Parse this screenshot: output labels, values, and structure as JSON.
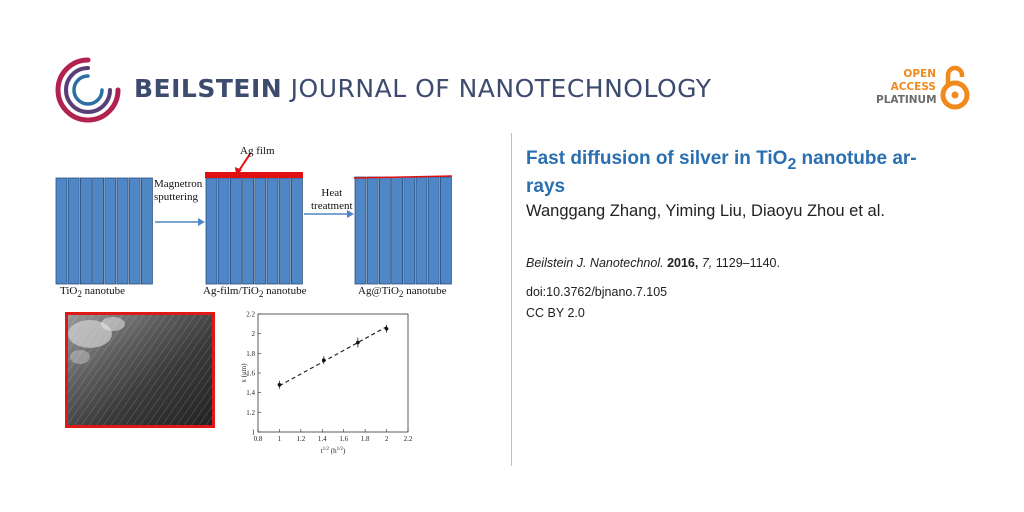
{
  "header": {
    "journal_bold": "BEILSTEIN",
    "journal_rest": " JOURNAL OF NANOTECHNOLOGY",
    "oa_line1": "OPEN",
    "oa_line2": "ACCESS",
    "oa_line3": "PLATINUM"
  },
  "figure": {
    "ag_film": "Ag film",
    "step1_line1": "Magnetron",
    "step1_line2": "sputtering",
    "step2_line1": "Heat",
    "step2_line2": "treatment",
    "cap1_a": "TiO",
    "cap1_sub": "2",
    "cap1_b": " nanotube",
    "cap2_a": "Ag-film/TiO",
    "cap2_sub": "2",
    "cap2_b": " nanotube",
    "cap3_a": "Ag@TiO",
    "cap3_sub": "2",
    "cap3_b": " nanotube"
  },
  "article": {
    "title_a": "Fast diffusion of silver in TiO",
    "title_sub": "2",
    "title_b": " nanotube ar-",
    "title_c": "rays",
    "authors": "Wanggang Zhang, Yiming Liu, Diaoyu Zhou et al.",
    "cite_journal": "Beilstein J. Nanotechnol.",
    "cite_year": "2016,",
    "cite_vol": "7,",
    "cite_pages": "1129–1140.",
    "doi": "doi:10.3762/bjnano.7.105",
    "license": "CC BY 2.0"
  },
  "colors": {
    "title_blue": "#2a6fb0",
    "tube_blue": "#4f86c6",
    "ag_red": "#e01010",
    "oa_orange": "#f08a1c",
    "journal_navy": "#3c4b6e"
  },
  "chart_data": {
    "type": "scatter",
    "xlabel": "t^(1/2) (h^(1/2))",
    "ylabel": "x (μm)",
    "xlim": [
      0.8,
      2.2
    ],
    "ylim": [
      1.0,
      2.2
    ],
    "x_ticks": [
      "0.8",
      "1",
      "1.2",
      "1.4",
      "1.6",
      "1.8",
      "2",
      "2.2"
    ],
    "y_ticks": [
      "1",
      "1.2",
      "1.4",
      "1.6",
      "1.8",
      "2",
      "2.2"
    ],
    "points": [
      {
        "x": 1.0,
        "y": 1.48,
        "err": 0.04
      },
      {
        "x": 1.414,
        "y": 1.73,
        "err": 0.04
      },
      {
        "x": 1.732,
        "y": 1.91,
        "err": 0.05
      },
      {
        "x": 2.0,
        "y": 2.05,
        "err": 0.04
      }
    ],
    "fit_line": {
      "x": [
        1.0,
        2.0
      ],
      "y": [
        1.47,
        2.07
      ]
    }
  }
}
